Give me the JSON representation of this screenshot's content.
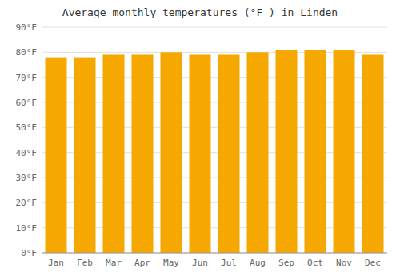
{
  "chart_data": {
    "type": "bar",
    "title": "Average monthly temperatures (°F ) in Linden",
    "categories": [
      "Jan",
      "Feb",
      "Mar",
      "Apr",
      "May",
      "Jun",
      "Jul",
      "Aug",
      "Sep",
      "Oct",
      "Nov",
      "Dec"
    ],
    "values": [
      78,
      78,
      79,
      79,
      80,
      79,
      79,
      80,
      81,
      81,
      81,
      79
    ],
    "color": "#F5A800",
    "ylim": [
      0,
      90
    ],
    "yticks": [
      {
        "value": 0,
        "label": "0°F"
      },
      {
        "value": 10,
        "label": "10°F"
      },
      {
        "value": 20,
        "label": "20°F"
      },
      {
        "value": 30,
        "label": "30°F"
      },
      {
        "value": 40,
        "label": "40°F"
      },
      {
        "value": 50,
        "label": "50°F"
      },
      {
        "value": 60,
        "label": "60°F"
      },
      {
        "value": 70,
        "label": "70°F"
      },
      {
        "value": 80,
        "label": "80°F"
      },
      {
        "value": 90,
        "label": "90°F"
      }
    ],
    "grid": true
  }
}
